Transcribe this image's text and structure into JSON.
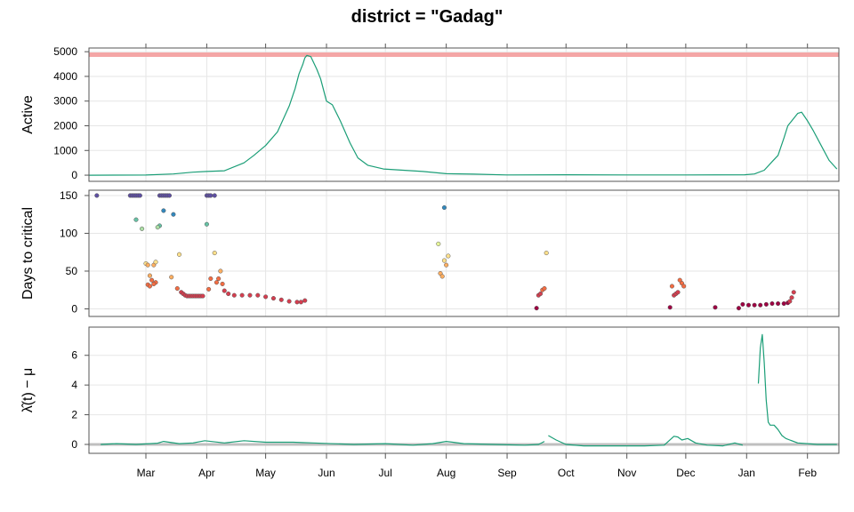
{
  "title": "district = \"Gadag\"",
  "colors": {
    "line": "#1b9e77",
    "grid": "#e6e6e6",
    "frame": "#555555",
    "capacity": "#f4a6a6",
    "zero_ref": "#bfbfbf",
    "palette": [
      "#9e0142",
      "#d53e4f",
      "#f46d43",
      "#fdae61",
      "#fee08b",
      "#e6f598",
      "#abdda4",
      "#66c2a5",
      "#3288bd",
      "#5e4fa2"
    ]
  },
  "x_axis": {
    "type": "date",
    "range": [
      "2020-02-01",
      "2021-02-17"
    ],
    "ticks": [
      {
        "date": "2020-03-01",
        "label": "Mar"
      },
      {
        "date": "2020-04-01",
        "label": "Apr"
      },
      {
        "date": "2020-05-01",
        "label": "May"
      },
      {
        "date": "2020-06-01",
        "label": "Jun"
      },
      {
        "date": "2020-07-01",
        "label": "Jul"
      },
      {
        "date": "2020-08-01",
        "label": "Aug"
      },
      {
        "date": "2020-09-01",
        "label": "Sep"
      },
      {
        "date": "2020-10-01",
        "label": "Oct"
      },
      {
        "date": "2020-11-01",
        "label": "Nov"
      },
      {
        "date": "2020-12-01",
        "label": "Dec"
      },
      {
        "date": "2021-01-01",
        "label": "Jan"
      },
      {
        "date": "2021-02-01",
        "label": "Feb"
      }
    ]
  },
  "chart_data": [
    {
      "type": "line",
      "ylabel": "Active",
      "ylim": [
        -250,
        5150
      ],
      "yticks": [
        0,
        1000,
        2000,
        3000,
        4000,
        5000
      ],
      "capacity": 4880,
      "series": [
        {
          "x": [
            "2020-02-01",
            "2020-03-01",
            "2020-03-15",
            "2020-03-25",
            "2020-04-01",
            "2020-04-10",
            "2020-04-20",
            "2020-04-25",
            "2020-05-01",
            "2020-05-07",
            "2020-05-13",
            "2020-05-16",
            "2020-05-18",
            "2020-05-20",
            "2020-05-21",
            "2020-05-22",
            "2020-05-24",
            "2020-05-27",
            "2020-05-29",
            "2020-06-01",
            "2020-06-04",
            "2020-06-08",
            "2020-06-13",
            "2020-06-17",
            "2020-06-22",
            "2020-06-30",
            "2020-07-10",
            "2020-07-20",
            "2020-08-01",
            "2020-08-15",
            "2020-09-01",
            "2020-10-01",
            "2020-11-01",
            "2020-12-01",
            "2020-12-31",
            "2021-01-05",
            "2021-01-10",
            "2021-01-14",
            "2021-01-17",
            "2021-01-20",
            "2021-01-22",
            "2021-01-25",
            "2021-01-27",
            "2021-01-29",
            "2021-02-01",
            "2021-02-04",
            "2021-02-08",
            "2021-02-12",
            "2021-02-16"
          ],
          "y": [
            0,
            5,
            50,
            120,
            150,
            180,
            500,
            800,
            1200,
            1750,
            2800,
            3500,
            4100,
            4500,
            4750,
            4850,
            4800,
            4300,
            3900,
            3000,
            2850,
            2200,
            1300,
            700,
            400,
            250,
            200,
            150,
            60,
            40,
            10,
            15,
            10,
            10,
            15,
            50,
            200,
            550,
            800,
            1500,
            2000,
            2300,
            2500,
            2550,
            2200,
            1800,
            1200,
            600,
            250
          ]
        }
      ]
    },
    {
      "type": "scatter",
      "ylabel": "Days to critical",
      "ylim": [
        -10,
        157
      ],
      "yticks": [
        0,
        50,
        100,
        150
      ],
      "series": [
        {
          "x": [
            "2020-02-05",
            "2020-02-22",
            "2020-02-23",
            "2020-02-24",
            "2020-02-25",
            "2020-02-26",
            "2020-02-27",
            "2020-03-08",
            "2020-03-09",
            "2020-03-10",
            "2020-03-11",
            "2020-03-12",
            "2020-03-13",
            "2020-04-01",
            "2020-04-02",
            "2020-04-03",
            "2020-04-05",
            "2020-02-25",
            "2020-02-28",
            "2020-03-08",
            "2020-03-10",
            "2020-03-15",
            "2020-03-07",
            "2020-04-01",
            "2020-03-01",
            "2020-03-02",
            "2020-03-05",
            "2020-03-06",
            "2020-03-18",
            "2020-04-05",
            "2020-03-03",
            "2020-03-04",
            "2020-03-06",
            "2020-03-14",
            "2020-04-03",
            "2020-03-02",
            "2020-03-03",
            "2020-03-05",
            "2020-03-17",
            "2020-04-02",
            "2020-04-06",
            "2020-03-19",
            "2020-03-20",
            "2020-03-21",
            "2020-03-22",
            "2020-03-23",
            "2020-03-24",
            "2020-03-25",
            "2020-03-26",
            "2020-03-27",
            "2020-03-28",
            "2020-03-29",
            "2020-03-30",
            "2020-04-07",
            "2020-04-08",
            "2020-04-09",
            "2020-04-10",
            "2020-04-12",
            "2020-04-15",
            "2020-04-19",
            "2020-04-23",
            "2020-04-27",
            "2020-05-01",
            "2020-05-05",
            "2020-05-09",
            "2020-05-13",
            "2020-05-17",
            "2020-05-19",
            "2020-05-21",
            "2020-07-28",
            "2020-07-29",
            "2020-07-30",
            "2020-07-31",
            "2020-08-01",
            "2020-08-02",
            "2020-07-31",
            "2020-09-16",
            "2020-09-17",
            "2020-09-18",
            "2020-09-19",
            "2020-09-20",
            "2020-09-21",
            "2020-11-23",
            "2020-11-24",
            "2020-11-25",
            "2020-11-26",
            "2020-11-27",
            "2020-11-28",
            "2020-11-29",
            "2020-11-30",
            "2020-12-16",
            "2020-12-28",
            "2020-12-30",
            "2021-01-02",
            "2021-01-05",
            "2021-01-08",
            "2021-01-11",
            "2021-01-14",
            "2021-01-17",
            "2021-01-20",
            "2021-01-22",
            "2021-01-23",
            "2021-01-24",
            "2021-01-25"
          ],
          "y": [
            150,
            150,
            150,
            150,
            150,
            150,
            150,
            150,
            150,
            150,
            150,
            150,
            150,
            150,
            150,
            150,
            150,
            118,
            106,
            110,
            130,
            125,
            108,
            112,
            60,
            58,
            58,
            62,
            72,
            74,
            44,
            38,
            35,
            42,
            40,
            32,
            30,
            33,
            27,
            26,
            35,
            22,
            20,
            18,
            17,
            17,
            17,
            17,
            17,
            17,
            17,
            17,
            17,
            40,
            50,
            33,
            24,
            20,
            18,
            18,
            18,
            18,
            16,
            14,
            12,
            10,
            9,
            9,
            11,
            86,
            47,
            43,
            64,
            58,
            70,
            134,
            1,
            18,
            20,
            25,
            27,
            74,
            2,
            30,
            18,
            20,
            22,
            38,
            34,
            30,
            2,
            1,
            6,
            5,
            5,
            5,
            6,
            7,
            7,
            7,
            8,
            10,
            15,
            22
          ],
          "color_by": "y"
        }
      ]
    },
    {
      "type": "line",
      "ylabel": "λ̂(t) − μ",
      "ylim": [
        -0.6,
        7.9
      ],
      "yticks": [
        0,
        2,
        4,
        6
      ],
      "zero_line": 0,
      "series": [
        {
          "x": [
            "2020-02-07",
            "2020-02-15",
            "2020-02-25",
            "2020-03-07",
            "2020-03-10",
            "2020-03-18",
            "2020-03-25",
            "2020-03-31",
            "2020-04-10",
            "2020-04-20",
            "2020-05-01",
            "2020-05-15",
            "2020-05-25",
            "2020-06-15",
            "2020-07-01",
            "2020-07-15",
            "2020-07-25",
            "2020-08-01",
            "2020-08-10",
            "2020-08-25",
            "2020-09-10",
            "2020-09-17",
            "2020-09-20"
          ],
          "y": [
            0.0,
            0.05,
            0.0,
            0.08,
            0.2,
            0.05,
            0.1,
            0.25,
            0.1,
            0.25,
            0.15,
            0.15,
            0.1,
            0.0,
            0.05,
            -0.05,
            0.05,
            0.2,
            0.05,
            0.0,
            -0.05,
            0.0,
            0.2
          ]
        },
        {
          "x": [
            "2020-09-22",
            "2020-09-26",
            "2020-10-01",
            "2020-10-10",
            "2020-10-20",
            "2020-11-01",
            "2020-11-10",
            "2020-11-20",
            "2020-11-25",
            "2020-11-27",
            "2020-11-29",
            "2020-12-02",
            "2020-12-06",
            "2020-12-12",
            "2020-12-20",
            "2020-12-26",
            "2020-12-30"
          ],
          "y": [
            0.6,
            0.3,
            0.0,
            -0.1,
            -0.1,
            -0.1,
            -0.1,
            -0.05,
            0.55,
            0.5,
            0.3,
            0.4,
            0.1,
            -0.05,
            -0.1,
            0.1,
            -0.05
          ]
        },
        {
          "x": [
            "2021-01-07",
            "2021-01-08",
            "2021-01-09",
            "2021-01-10",
            "2021-01-11",
            "2021-01-12",
            "2021-01-13",
            "2021-01-15",
            "2021-01-17",
            "2021-01-19",
            "2021-01-21",
            "2021-01-23",
            "2021-01-27",
            "2021-02-01",
            "2021-02-06",
            "2021-02-12",
            "2021-02-16"
          ],
          "y": [
            4.1,
            6.5,
            7.4,
            5.5,
            3.0,
            1.5,
            1.3,
            1.3,
            1.0,
            0.6,
            0.4,
            0.3,
            0.1,
            0.05,
            0.0,
            0.0,
            0.0
          ]
        }
      ]
    }
  ]
}
